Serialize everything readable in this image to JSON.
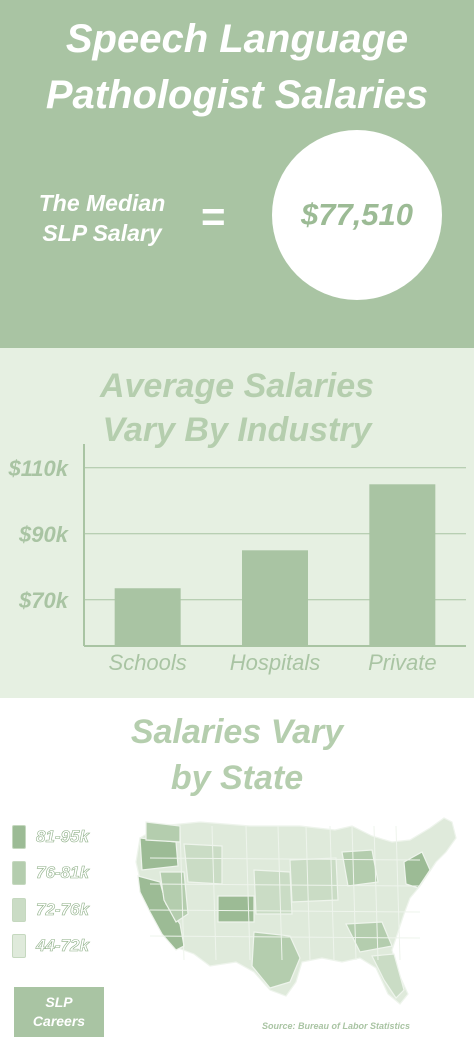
{
  "header": {
    "title_line1": "Speech Language",
    "title_line2": "Pathologist Salaries",
    "median_label_line1": "The Median",
    "median_label_line2": "SLP Salary",
    "equals": "=",
    "median_value": "$77,510"
  },
  "industry": {
    "title_line1": "Average Salaries",
    "title_line2": "Vary By Industry"
  },
  "chart_data": {
    "type": "bar",
    "title": "Average Salaries Vary By Industry",
    "categories": [
      "Schools",
      "Hospitals",
      "Private"
    ],
    "values": [
      73.5,
      85,
      105
    ],
    "ytick_labels": [
      "$110k",
      "$90k",
      "$70k"
    ],
    "yticks": [
      110,
      90,
      70
    ],
    "ylim": [
      56,
      116
    ],
    "grid": true,
    "bar_color": "#a9c4a3",
    "label_color": "#a9c4a3"
  },
  "state": {
    "title_line1": "Salaries Vary",
    "title_line2": "by State",
    "legend": [
      {
        "label": "81-95k",
        "color": "#9cbb95"
      },
      {
        "label": "76-81k",
        "color": "#b4cdae"
      },
      {
        "label": "72-76k",
        "color": "#cadcc5"
      },
      {
        "label": "44-72k",
        "color": "#dfeadb"
      }
    ],
    "map_colors": {
      "highest": "#9cbb95",
      "high": "#b4cdae",
      "mid": "#cadcc5",
      "low": "#dfeadb",
      "border": "#eef4ec"
    }
  },
  "footer": {
    "brand_line1": "SLP",
    "brand_line2": "Careers",
    "source": "Source: Bureau of Labor Statistics"
  }
}
